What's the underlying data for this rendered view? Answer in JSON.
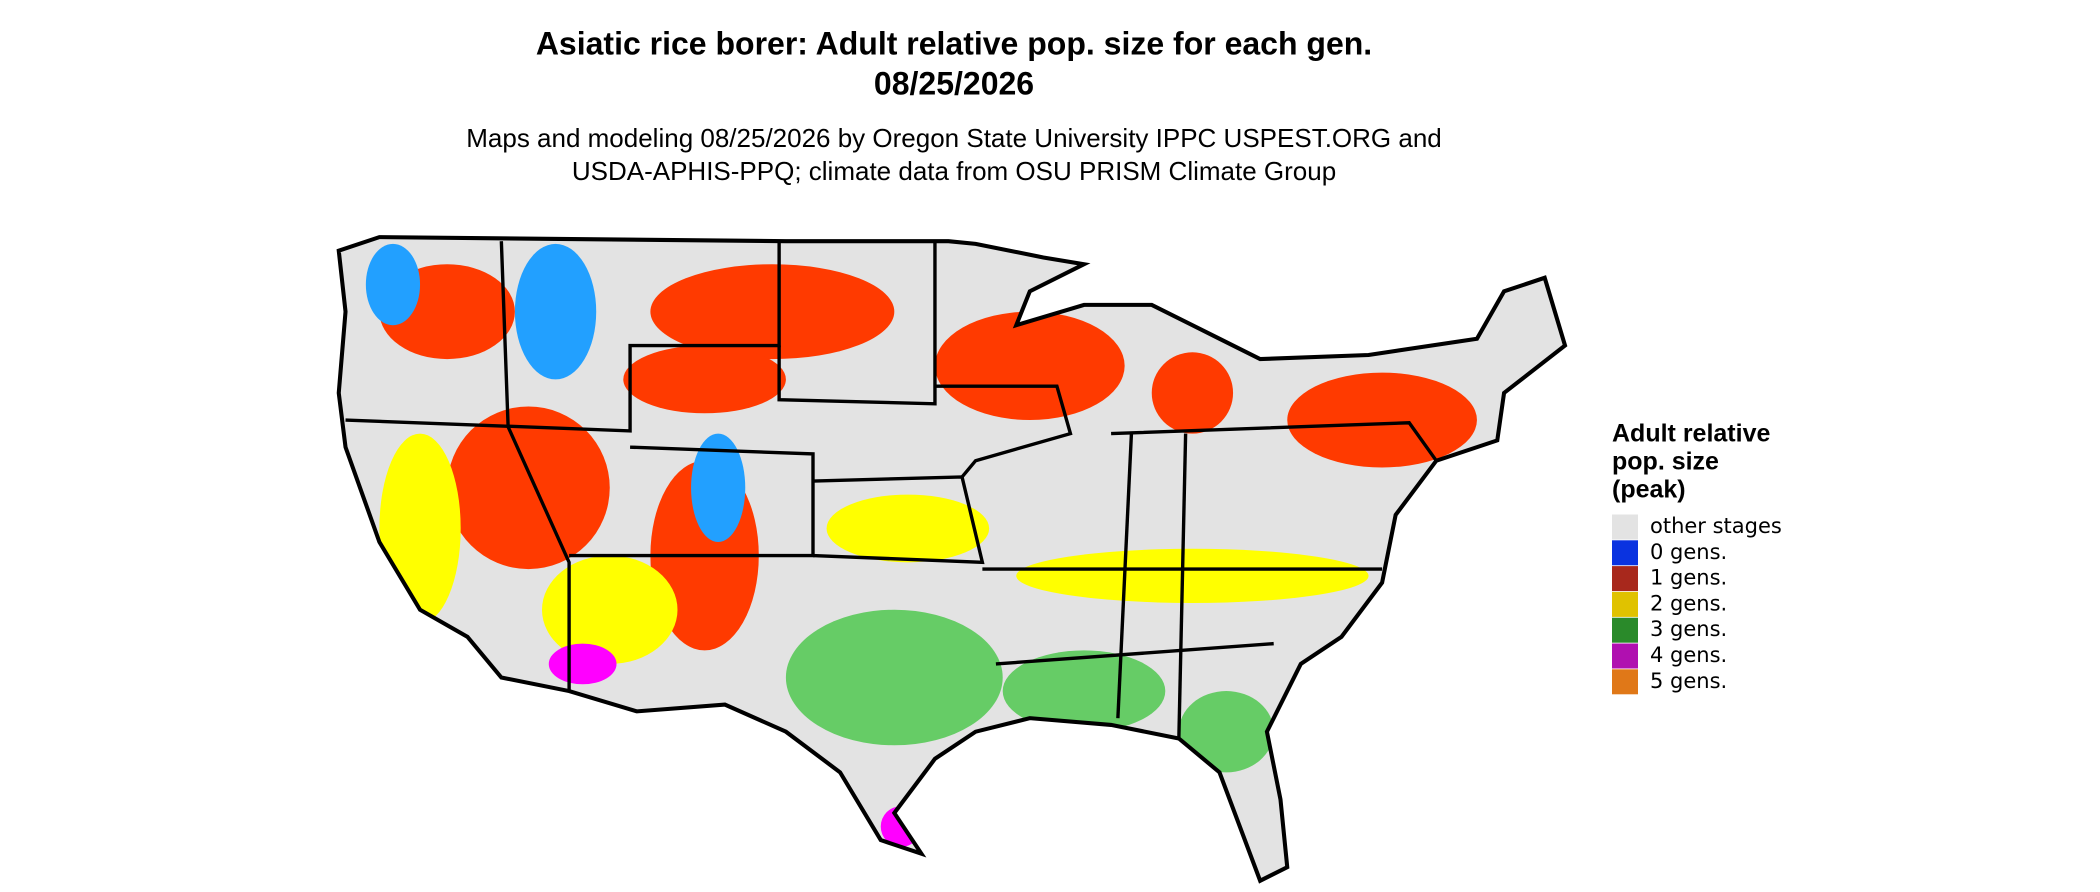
{
  "header": {
    "title_lines": [
      "Asiatic rice borer: Adult relative pop. size for each gen.",
      "08/25/2026"
    ],
    "subtitle_lines": [
      "Maps and modeling 08/25/2026 by Oregon State University IPPC USPEST.ORG and",
      "USDA-APHIS-PPQ; climate data from OSU PRISM Climate Group"
    ]
  },
  "legend": {
    "title_lines": [
      "Adult relative",
      "pop. size",
      "(peak)"
    ],
    "items": [
      {
        "label": "other stages",
        "color": "#e3e3e3"
      },
      {
        "label": "0 gens.",
        "color": "#0a33e0"
      },
      {
        "label": "1 gens.",
        "color": "#a8281c"
      },
      {
        "label": "2 gens.",
        "color": "#e0c200"
      },
      {
        "label": "3 gens.",
        "color": "#2a8a2a"
      },
      {
        "label": "4 gens.",
        "color": "#b010b0"
      },
      {
        "label": "5 gens.",
        "color": "#e07818"
      }
    ]
  }
}
